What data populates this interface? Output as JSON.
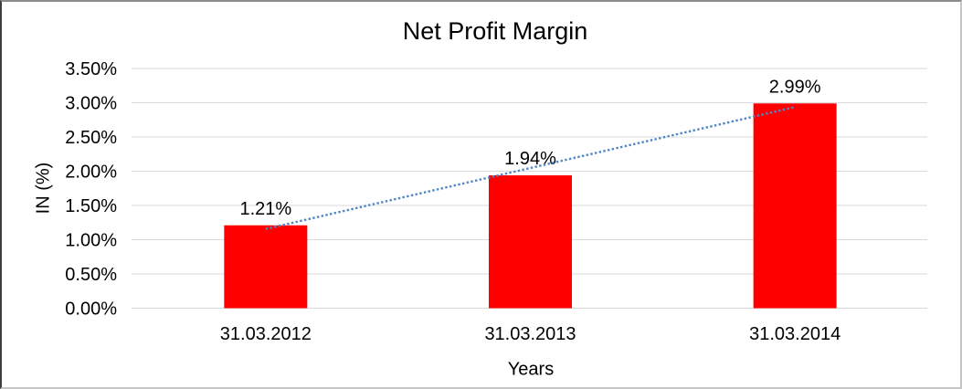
{
  "chart_data": {
    "type": "bar",
    "title": "Net Profit Margin",
    "xlabel": "Years",
    "ylabel": "IN (%)",
    "categories": [
      "31.03.2012",
      "31.03.2013",
      "31.03.2014"
    ],
    "values": [
      1.21,
      1.94,
      2.99
    ],
    "value_labels": [
      "1.21%",
      "1.94%",
      "2.99%"
    ],
    "y_ticks": [
      0,
      0.5,
      1,
      1.5,
      2,
      2.5,
      3,
      3.5
    ],
    "y_tick_labels": [
      "0.00%",
      "0.50%",
      "1.00%",
      "1.50%",
      "2.00%",
      "2.50%",
      "3.00%",
      "3.50%"
    ],
    "ylim": [
      0,
      3.5
    ],
    "grid": true,
    "legend_position": "none",
    "bar_color": "#ff0000",
    "gridline_color": "#d9d9d9",
    "trendline": {
      "type": "linear",
      "style": "dotted",
      "color": "#4f86c6"
    }
  }
}
